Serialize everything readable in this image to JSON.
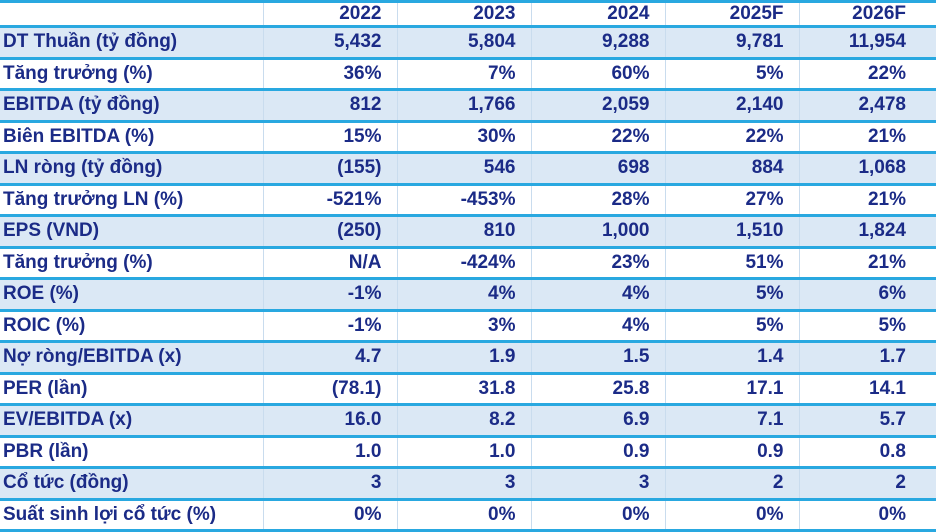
{
  "colors": {
    "border_line": "#29A8E0",
    "alt_row_background": "#DBE8F5",
    "text": "#1B2B87",
    "background": "#FFFFFF"
  },
  "chart_data": {
    "type": "table",
    "layout_hints": {
      "header_row": true,
      "alternating_row_shading": "odd data rows light blue",
      "value_alignment": "right",
      "label_alignment": "left"
    },
    "columns": [
      "",
      "2022",
      "2023",
      "2024",
      "2025F",
      "2026F"
    ],
    "rows": [
      {
        "label": "DT Thuần (tỷ đồng)",
        "values": [
          "5,432",
          "5,804",
          "9,288",
          "9,781",
          "11,954"
        ]
      },
      {
        "label": "Tăng trưởng (%)",
        "values": [
          "36%",
          "7%",
          "60%",
          "5%",
          "22%"
        ]
      },
      {
        "label": "EBITDA (tỷ đồng)",
        "values": [
          "812",
          "1,766",
          "2,059",
          "2,140",
          "2,478"
        ]
      },
      {
        "label": "Biên EBITDA (%)",
        "values": [
          "15%",
          "30%",
          "22%",
          "22%",
          "21%"
        ]
      },
      {
        "label": "LN ròng (tỷ đồng)",
        "values": [
          "(155)",
          "546",
          "698",
          "884",
          "1,068"
        ]
      },
      {
        "label": "Tăng trưởng LN (%)",
        "values": [
          "-521%",
          "-453%",
          "28%",
          "27%",
          "21%"
        ]
      },
      {
        "label": "EPS (VND)",
        "values": [
          "(250)",
          "810",
          "1,000",
          "1,510",
          "1,824"
        ]
      },
      {
        "label": "Tăng trưởng (%)",
        "values": [
          "N/A",
          "-424%",
          "23%",
          "51%",
          "21%"
        ]
      },
      {
        "label": "ROE (%)",
        "values": [
          "-1%",
          "4%",
          "4%",
          "5%",
          "6%"
        ]
      },
      {
        "label": "ROIC (%)",
        "values": [
          "-1%",
          "3%",
          "4%",
          "5%",
          "5%"
        ]
      },
      {
        "label": "Nợ ròng/EBITDA (x)",
        "values": [
          "4.7",
          "1.9",
          "1.5",
          "1.4",
          "1.7"
        ]
      },
      {
        "label": "PER (lần)",
        "values": [
          "(78.1)",
          "31.8",
          "25.8",
          "17.1",
          "14.1"
        ]
      },
      {
        "label": "EV/EBITDA (x)",
        "values": [
          "16.0",
          "8.2",
          "6.9",
          "7.1",
          "5.7"
        ]
      },
      {
        "label": "PBR (lần)",
        "values": [
          "1.0",
          "1.0",
          "0.9",
          "0.9",
          "0.8"
        ]
      },
      {
        "label": "Cổ tức (đồng)",
        "values": [
          "3",
          "3",
          "3",
          "2",
          "2"
        ]
      },
      {
        "label": "Suất sinh lợi cổ tức (%)",
        "values": [
          "0%",
          "0%",
          "0%",
          "0%",
          "0%"
        ]
      }
    ]
  }
}
